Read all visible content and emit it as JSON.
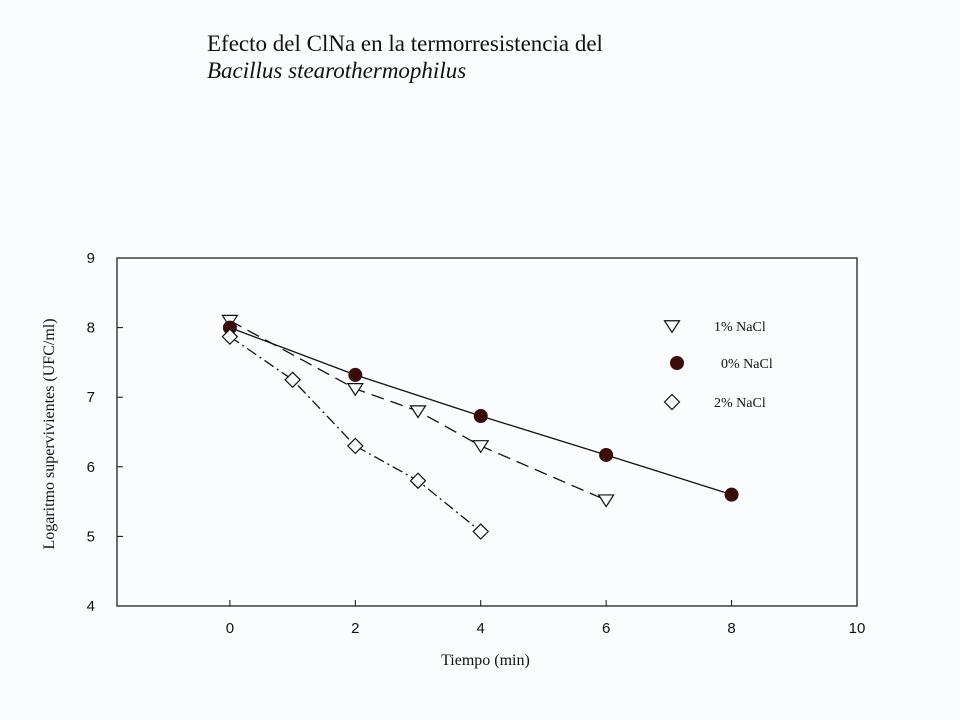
{
  "header": {
    "title": "Efecto del ClNa en la termorresistencia del",
    "subtitle": "Bacillus stearothermophilus"
  },
  "chart_data": {
    "type": "line",
    "xlabel": "Tiempo (min)",
    "ylabel": "Logaritmo supervivientes (UFC/ml)",
    "xlim": [
      -1.8,
      10
    ],
    "ylim": [
      4,
      9
    ],
    "xticks": [
      0,
      2,
      4,
      6,
      8,
      10
    ],
    "yticks": [
      4,
      5,
      6,
      7,
      8,
      9
    ],
    "grid": false,
    "legend_position": "top-right inside",
    "series": [
      {
        "name": "1% NaCl",
        "marker": "triangle-down-open",
        "line_style": "dashed",
        "color": "#111111",
        "x": [
          0,
          2,
          3,
          4,
          6
        ],
        "y": [
          8.1,
          7.12,
          6.8,
          6.3,
          5.52
        ]
      },
      {
        "name": "0% NaCl",
        "marker": "circle-filled",
        "line_style": "solid",
        "color": "#3a0d0d",
        "x": [
          0,
          2,
          4,
          6,
          8
        ],
        "y": [
          8.0,
          7.32,
          6.73,
          6.17,
          5.6
        ]
      },
      {
        "name": "2% NaCl",
        "marker": "diamond-open",
        "line_style": "dashdot",
        "color": "#111111",
        "x": [
          0,
          1,
          2,
          3,
          4
        ],
        "y": [
          7.87,
          7.25,
          6.3,
          5.8,
          5.07
        ]
      }
    ]
  }
}
